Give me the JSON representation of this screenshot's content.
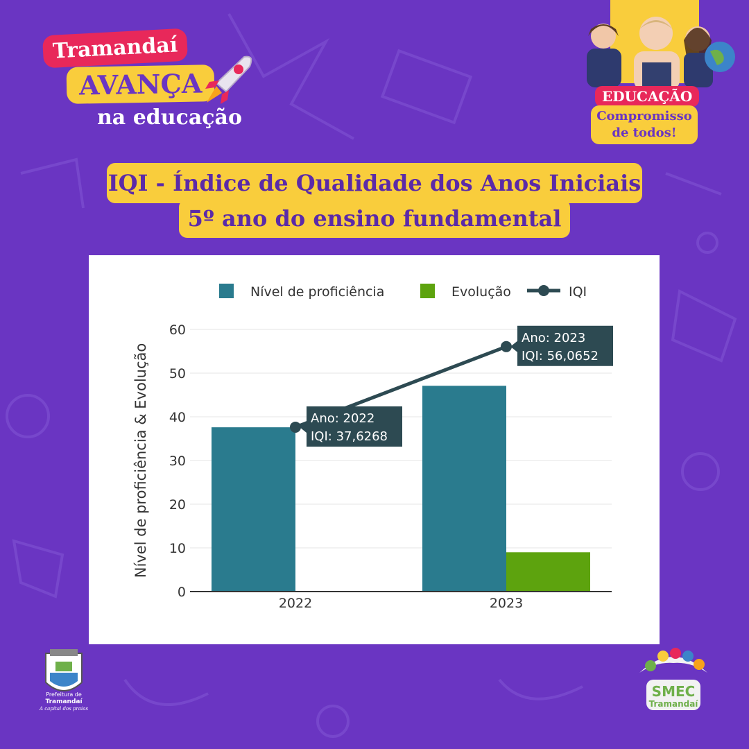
{
  "header": {
    "brand_top": "Tramandaí",
    "brand_mid": "AVANÇA",
    "brand_sub": "na educação",
    "badge_title": "EDUCAÇÃO",
    "badge_line1": "Compromisso",
    "badge_line2": "de todos!"
  },
  "title": {
    "line1": "IQI - Índice de Qualidade dos Anos Iniciais",
    "line2": "5º ano do ensino fundamental"
  },
  "chart_data": {
    "type": "bar",
    "categories": [
      "2022",
      "2023"
    ],
    "series": [
      {
        "name": "Nível de proficiência",
        "type": "bar",
        "color": "#2a7b8e",
        "values": [
          37.6,
          47.1
        ]
      },
      {
        "name": "Evolução",
        "type": "bar",
        "color": "#5da30e",
        "values": [
          0,
          9.0
        ]
      },
      {
        "name": "IQI",
        "type": "line",
        "color": "#2d4a52",
        "values": [
          37.6268,
          56.0652
        ]
      }
    ],
    "ylabel": "Nível de proficiência & Evolução",
    "ylim": [
      0,
      60
    ],
    "yticks": [
      0,
      10,
      20,
      30,
      40,
      50,
      60
    ],
    "grid": true,
    "legend_position": "top",
    "tooltips": [
      {
        "line1": "Ano:  2022",
        "line2": "IQI:  37,6268"
      },
      {
        "line1": "Ano:  2023",
        "line2": "IQI:  56,0652"
      }
    ]
  },
  "footer": {
    "pref_line1": "Prefeitura de",
    "pref_line2": "Tramandaí",
    "pref_slogan": "A capital dos praias",
    "smec_line1": "SMEC",
    "smec_line2": "Tramandaí"
  },
  "colors": {
    "background": "#6a35c2",
    "accent_yellow": "#f9cd3c",
    "accent_red": "#e8285a"
  }
}
